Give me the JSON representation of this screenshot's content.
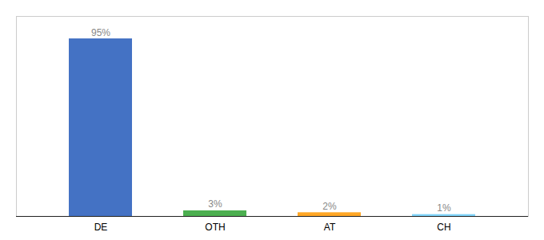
{
  "chart_data": {
    "type": "bar",
    "categories": [
      "DE",
      "OTH",
      "AT",
      "CH"
    ],
    "values": [
      95,
      3,
      2,
      1
    ],
    "value_labels": [
      "95%",
      "3%",
      "2%",
      "1%"
    ],
    "data_labels": true,
    "colors": [
      "#4472C4",
      "#4CAF50",
      "#FFA726",
      "#81D4FA"
    ],
    "ylim": [
      0,
      107
    ],
    "tick_labels": "x",
    "grid": false
  }
}
